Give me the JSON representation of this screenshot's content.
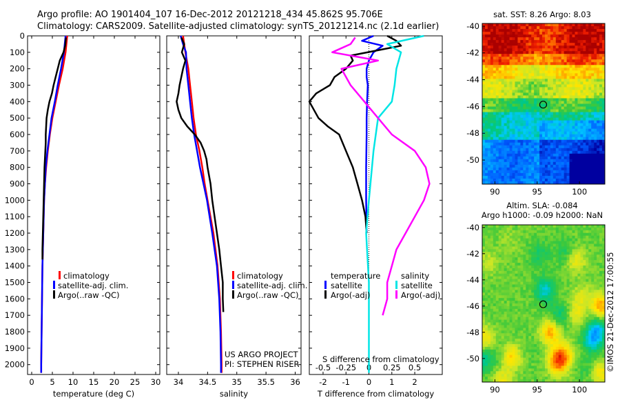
{
  "header": {
    "line1": "Argo profile: AO 1901404_107 16-Dec-2012 20121218_434 45.862S 95.706E",
    "line2": "Climatology: CARS2009. Satellite-adjusted climatology: synTS_20121214.nc (2.1d earlier)"
  },
  "credits": {
    "project": "US ARGO PROJECT",
    "pi": "PI: STEPHEN RISER",
    "stamp": "©IMOS 21-Dec-2012 17:00:55"
  },
  "colors": {
    "climatology": "#ff0000",
    "satellite": "#0000ff",
    "argo": "#000000",
    "salinity_satellite": "#00e5e5",
    "salinity_argo": "#ff00ff"
  },
  "depth_ticks": [
    0,
    100,
    200,
    300,
    400,
    500,
    600,
    700,
    800,
    900,
    1000,
    1100,
    1200,
    1300,
    1400,
    1500,
    1600,
    1700,
    1800,
    1900,
    2000
  ],
  "chart_data": [
    {
      "type": "line",
      "id": "temperature",
      "xlabel": "temperature (deg C)",
      "xlim": [
        -1,
        31
      ],
      "ylim": [
        2060,
        0
      ],
      "xticks": [
        0,
        5,
        10,
        15,
        20,
        25,
        30
      ],
      "legend": [
        "climatology",
        "satellite-adj. clim.",
        "Argo(..raw -QC)"
      ],
      "legend_position": "lower-right",
      "series": [
        {
          "name": "climatology",
          "color": "#ff0000",
          "depth": [
            0,
            100,
            200,
            300,
            400,
            500,
            600,
            700,
            800,
            900,
            1000,
            1200,
            1400,
            1600,
            1800,
            2000,
            2050
          ],
          "x": [
            8.6,
            8.2,
            7.5,
            6.6,
            5.8,
            5.0,
            4.4,
            3.9,
            3.5,
            3.2,
            3.0,
            2.8,
            2.6,
            2.5,
            2.4,
            2.3,
            2.3
          ]
        },
        {
          "name": "satellite-adj. clim.",
          "color": "#0000ff",
          "depth": [
            0,
            100,
            200,
            300,
            400,
            500,
            600,
            700,
            800,
            900,
            1000,
            1200,
            1400,
            1600,
            1800,
            2000,
            2050
          ],
          "x": [
            8.2,
            7.8,
            7.1,
            6.3,
            5.6,
            4.8,
            4.3,
            3.8,
            3.4,
            3.2,
            3.0,
            2.8,
            2.6,
            2.5,
            2.4,
            2.3,
            2.3
          ]
        },
        {
          "name": "Argo(..raw -QC)",
          "color": "#000000",
          "depth": [
            10,
            60,
            100,
            150,
            200,
            250,
            300,
            350,
            400,
            450,
            500,
            550,
            600,
            650,
            700,
            800,
            900,
            1000,
            1100,
            1200,
            1300,
            1360
          ],
          "x": [
            8.3,
            8.1,
            7.7,
            6.8,
            6.3,
            5.8,
            5.3,
            4.9,
            4.3,
            3.9,
            3.6,
            3.5,
            3.4,
            3.4,
            3.3,
            3.1,
            3.0,
            2.9,
            2.8,
            2.7,
            2.6,
            2.6
          ]
        }
      ]
    },
    {
      "type": "line",
      "id": "salinity",
      "xlabel": "salinity",
      "xlim": [
        33.8,
        36.1
      ],
      "ylim": [
        2060,
        0
      ],
      "xticks": [
        34,
        34.5,
        35,
        35.5,
        36
      ],
      "legend": [
        "climatology",
        "satellite-adj. clim.",
        "Argo(..raw -QC)"
      ],
      "legend_position": "lower-right",
      "series": [
        {
          "name": "climatology",
          "color": "#ff0000",
          "depth": [
            0,
            100,
            200,
            300,
            400,
            500,
            600,
            700,
            800,
            900,
            1000,
            1200,
            1400,
            1600,
            1800,
            2000,
            2050
          ],
          "x": [
            34.08,
            34.12,
            34.17,
            34.2,
            34.23,
            34.26,
            34.3,
            34.36,
            34.41,
            34.45,
            34.5,
            34.6,
            34.67,
            34.71,
            34.73,
            34.74,
            34.74
          ]
        },
        {
          "name": "satellite-adj. clim.",
          "color": "#0000ff",
          "depth": [
            0,
            50,
            100,
            200,
            300,
            400,
            500,
            600,
            700,
            800,
            900,
            1000,
            1200,
            1400,
            1600,
            1800,
            2000,
            2050
          ],
          "x": [
            34.04,
            34.08,
            34.13,
            34.14,
            34.17,
            34.2,
            34.23,
            34.27,
            34.32,
            34.37,
            34.43,
            34.49,
            34.58,
            34.66,
            34.7,
            34.72,
            34.73,
            34.73
          ]
        },
        {
          "name": "Argo(..raw -QC)",
          "color": "#000000",
          "depth": [
            10,
            50,
            100,
            150,
            200,
            250,
            300,
            350,
            400,
            450,
            500,
            550,
            600,
            650,
            700,
            750,
            800,
            900,
            1000,
            1100,
            1200,
            1300,
            1400,
            1500,
            1600,
            1680
          ],
          "x": [
            34.05,
            34.1,
            34.06,
            34.12,
            34.08,
            34.05,
            34.02,
            34.0,
            33.97,
            34.0,
            34.05,
            34.15,
            34.28,
            34.38,
            34.44,
            34.48,
            34.5,
            34.55,
            34.58,
            34.62,
            34.66,
            34.7,
            34.73,
            34.76,
            34.76,
            34.77
          ]
        }
      ]
    },
    {
      "type": "line",
      "id": "difference",
      "xlabel": "T difference from climatology",
      "xlabel2": "S difference from climatology",
      "xlim": [
        -2.6,
        3.2
      ],
      "ylim": [
        2060,
        0
      ],
      "xticks_T": [
        -2,
        -1,
        0,
        1,
        2
      ],
      "xticks_S": [
        "-0.5",
        "-0.25",
        "0",
        "0.25",
        "0.5"
      ],
      "legend": {
        "temperature_title": "temperature",
        "salinity_title": "salinity",
        "temperature_items": [
          "satellite",
          "Argo(-adj)"
        ],
        "salinity_items": [
          "satellite",
          "Argo(-adj)"
        ]
      },
      "series": [
        {
          "name": "satellite",
          "group": "temperature",
          "color": "#0000ff",
          "depth": [
            0,
            30,
            60,
            100,
            150,
            200,
            250,
            300,
            400,
            500,
            600,
            800,
            1000,
            1200
          ],
          "x": [
            0.2,
            -0.3,
            0.6,
            0.2,
            0.0,
            -0.1,
            -0.1,
            -0.05,
            -0.08,
            -0.1,
            -0.1,
            -0.12,
            -0.12,
            -0.1
          ]
        },
        {
          "name": "Argo(-adj)",
          "group": "temperature",
          "color": "#000000",
          "depth": [
            0,
            30,
            60,
            90,
            120,
            150,
            200,
            250,
            300,
            350,
            400,
            450,
            500,
            550,
            600,
            700,
            800,
            900,
            1000,
            1100,
            1200
          ],
          "x": [
            0.8,
            1.2,
            1.4,
            0.3,
            -0.8,
            -0.7,
            -1.0,
            -1.5,
            -1.7,
            -2.3,
            -2.6,
            -2.4,
            -2.2,
            -1.8,
            -1.3,
            -1.0,
            -0.7,
            -0.5,
            -0.3,
            -0.15,
            -0.1
          ]
        },
        {
          "name": "satellite",
          "group": "salinity",
          "color": "#00e5e5",
          "depth": [
            0,
            50,
            100,
            200,
            300,
            400,
            500,
            700,
            1000,
            1200,
            1500,
            2000,
            2050
          ],
          "x": [
            0.6,
            0.2,
            0.35,
            0.3,
            0.28,
            0.25,
            0.1,
            0.05,
            0.0,
            -0.03,
            0.0,
            0.0,
            0.0
          ]
        },
        {
          "name": "Argo(-adj)",
          "group": "salinity",
          "color": "#ff00ff",
          "depth": [
            10,
            50,
            100,
            150,
            200,
            300,
            400,
            500,
            600,
            700,
            800,
            900,
            1000,
            1100,
            1200,
            1300,
            1400,
            1500,
            1600,
            1700
          ],
          "x": [
            -0.15,
            -0.2,
            -0.4,
            0.1,
            -0.3,
            -0.2,
            -0.05,
            0.1,
            0.25,
            0.5,
            0.62,
            0.66,
            0.6,
            0.5,
            0.4,
            0.3,
            0.25,
            0.2,
            0.2,
            0.15
          ]
        }
      ]
    },
    {
      "type": "heatmap",
      "id": "sst_map",
      "title": "sat. SST: 8.26 Argo: 8.03",
      "xlim": [
        88.5,
        103
      ],
      "ylim": [
        -51.8,
        -39.8
      ],
      "xticks": [
        90,
        95,
        100
      ],
      "yticks": [
        -40,
        -42,
        -44,
        -46,
        -48,
        -50
      ],
      "marker": {
        "lon": 95.706,
        "lat": -45.862
      }
    },
    {
      "type": "heatmap",
      "id": "sla_map",
      "title": "Altim. SLA: -0.084",
      "subtitle": "Argo h1000: -0.09 h2000: NaN",
      "xlim": [
        88.5,
        103
      ],
      "ylim": [
        -51.8,
        -39.8
      ],
      "xticks": [
        90,
        95,
        100
      ],
      "yticks": [
        -40,
        -42,
        -44,
        -46,
        -48,
        -50
      ],
      "marker": {
        "lon": 95.706,
        "lat": -45.862
      }
    }
  ]
}
